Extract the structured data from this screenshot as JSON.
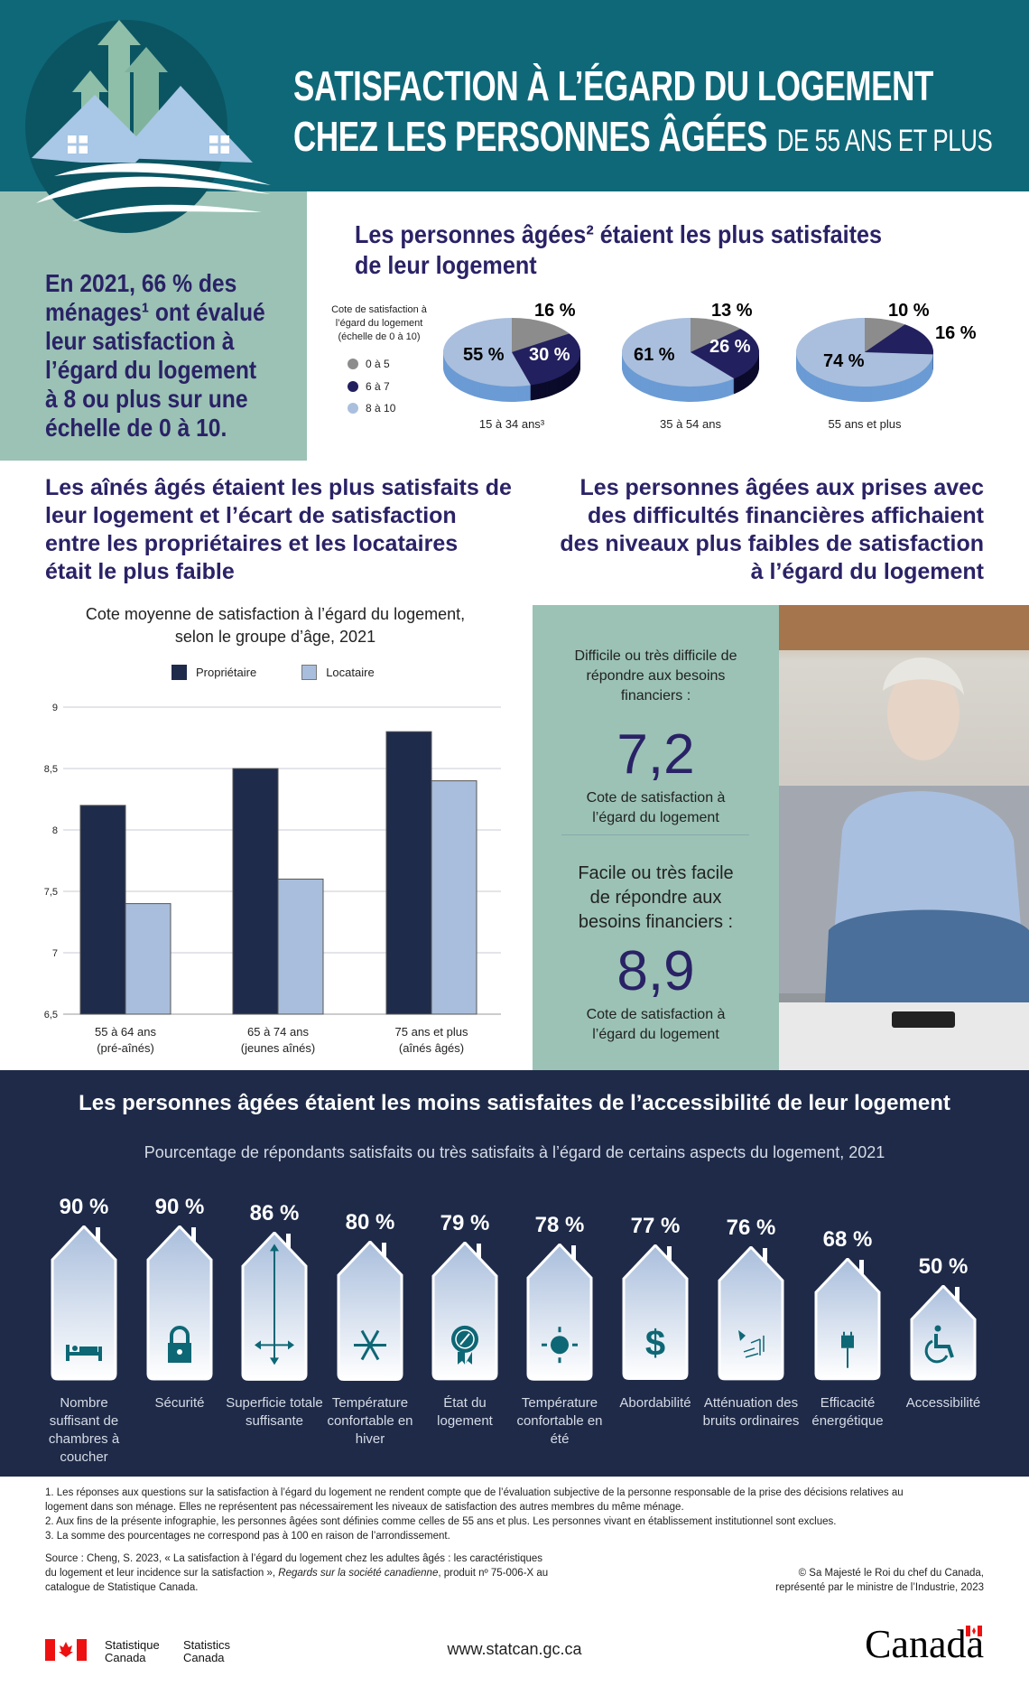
{
  "header": {
    "title_line1": "SATISFACTION À L’ÉGARD DU LOGEMENT",
    "title_line2": "CHEZ LES PERSONNES ÂGÉES",
    "title_suffix": "DE 55 ANS ET PLUS"
  },
  "intro": {
    "lines": [
      "En 2021, 66 % des",
      "ménages¹ ont évalué",
      "leur satisfaction à",
      "l’égard du logement",
      "à 8 ou plus sur une",
      "échelle de 0 à 10."
    ]
  },
  "pies_section": {
    "heading_lines": [
      "Les personnes âgées² étaient les plus satisfaites",
      "de leur logement"
    ]
  },
  "colors": {
    "teal_header": "#0f6878",
    "sage": "#9bc2b5",
    "purple": "#2a2266",
    "navy": "#1e2a48",
    "gray": "#8c8c8c",
    "dark_navy": "#232060",
    "light_blue": "#aabfdd"
  },
  "chart_data": [
    {
      "type": "pie",
      "legend_title": "Cote de satisfaction à l’égard du logement (échelle de 0 à 10)",
      "legend": [
        "0 à 5",
        "6 à 7",
        "8 à 10"
      ],
      "pies": [
        {
          "label": "15 à 34 ans³",
          "values": [
            16,
            30,
            55
          ],
          "labels": [
            "16 %",
            "30 %",
            "55 %"
          ]
        },
        {
          "label": "35 à 54 ans",
          "values": [
            13,
            26,
            61
          ],
          "labels": [
            "13 %",
            "26 %",
            "61 %"
          ]
        },
        {
          "label": "55 ans et plus",
          "values": [
            10,
            16,
            74
          ],
          "labels": [
            "10 %",
            "16 %",
            "74 %"
          ]
        }
      ]
    },
    {
      "type": "bar",
      "title_lines": [
        "Cote moyenne de satisfaction à l’égard du logement,",
        "selon le groupe d’âge, 2021"
      ],
      "categories": [
        [
          "55 à 64 ans",
          "(pré-aînés)"
        ],
        [
          "65 à 74 ans",
          "(jeunes aînés)"
        ],
        [
          "75 ans et plus",
          "(aînés âgés)"
        ]
      ],
      "series": [
        {
          "name": "Propriétaire",
          "values": [
            8.2,
            8.5,
            8.8
          ],
          "color": "#1f2b4a"
        },
        {
          "name": "Locataire",
          "values": [
            7.4,
            7.6,
            8.4
          ],
          "color": "#a9bedc"
        }
      ],
      "ylim": [
        6.5,
        9
      ],
      "yticks": [
        "6,5",
        "7",
        "7,5",
        "8",
        "8,5",
        "9"
      ],
      "grid": true,
      "legend": "top"
    },
    {
      "type": "bar",
      "title": "Pourcentage de répondants satisfaits ou très satisfaits à l’égard de certains aspects du logement, 2021",
      "items": [
        {
          "label": "Nombre suffisant de chambres à coucher",
          "value": 90,
          "pct": "90 %",
          "icon": "bed-icon"
        },
        {
          "label": "Sécurité",
          "value": 90,
          "pct": "90 %",
          "icon": "lock-icon"
        },
        {
          "label": "Superficie totale suffisante",
          "value": 86,
          "pct": "86 %",
          "icon": "arrows-icon"
        },
        {
          "label": "Température confortable en hiver",
          "value": 80,
          "pct": "80 %",
          "icon": "snowflake-icon"
        },
        {
          "label": "État du logement",
          "value": 79,
          "pct": "79 %",
          "icon": "badge-hammer-icon"
        },
        {
          "label": "Température confortable en été",
          "value": 78,
          "pct": "78 %",
          "icon": "sun-icon"
        },
        {
          "label": "Abordabilité",
          "value": 77,
          "pct": "77 %",
          "icon": "dollar-icon"
        },
        {
          "label": "Atténuation des bruits ordinaires",
          "value": 76,
          "pct": "76 %",
          "icon": "noise-icon"
        },
        {
          "label": "Efficacité énergétique",
          "value": 68,
          "pct": "68 %",
          "icon": "plug-icon"
        },
        {
          "label": "Accessibilité",
          "value": 50,
          "pct": "50 %",
          "icon": "wheelchair-icon"
        }
      ]
    }
  ],
  "bars_section": {
    "heading_lines": [
      "Les aînés âgés étaient les plus satisfaits de",
      "leur logement et l’écart de satisfaction",
      "entre les propriétaires et les locataires",
      "était le plus faible"
    ]
  },
  "finance_section": {
    "heading_lines": [
      "Les personnes âgées aux prises avec",
      "des difficultés financières affichaient",
      "des niveaux plus faibles de satisfaction",
      "à l’égard du logement"
    ],
    "difficult_lines": [
      "Difficile ou très difficile de",
      "répondre aux besoins",
      "financiers :"
    ],
    "difficult_value": "7,2",
    "rating_lines": [
      "Cote de satisfaction à",
      "l’égard du logement"
    ],
    "easy_lines": [
      "Facile ou très facile",
      "de répondre aux",
      "besoins financiers :"
    ],
    "easy_value": "8,9"
  },
  "access_section": {
    "heading": "Les personnes âgées étaient les moins satisfaites de l’accessibilité de leur logement"
  },
  "footnotes": [
    "1. Les réponses aux questions sur la satisfaction à l’égard du logement ne rendent compte que de l’évaluation subjective de la personne responsable de la prise des décisions relatives au",
    "logement dans son ménage. Elles ne représentent pas nécessairement les niveaux de satisfaction des autres membres du même ménage.",
    "2. Aux fins de la présente infographie, les personnes âgées sont définies comme celles de 55 ans et plus. Les personnes vivant en établissement institutionnel sont exclues.",
    "3. La somme des pourcentages ne correspond pas à 100 en raison de l’arrondissement."
  ],
  "source": {
    "line1": "Source : Cheng, S. 2023, « La satisfaction à l’égard du logement chez les adultes âgés : les caractéristiques",
    "line2a": "du logement et leur incidence sur la satisfaction », ",
    "line2b": "Regards sur la société canadienne",
    "line2c": ", produit nº 75-006-X au",
    "line3": "catalogue de Statistique Canada."
  },
  "copyright": [
    "© Sa Majesté le Roi du chef du Canada,",
    "représenté par le ministre de l’Industrie, 2023"
  ],
  "footer": {
    "statcan_fr": [
      "Statistique",
      "Canada"
    ],
    "statcan_en": [
      "Statistics",
      "Canada"
    ],
    "url": "www.statcan.gc.ca",
    "wordmark": "Canada"
  }
}
